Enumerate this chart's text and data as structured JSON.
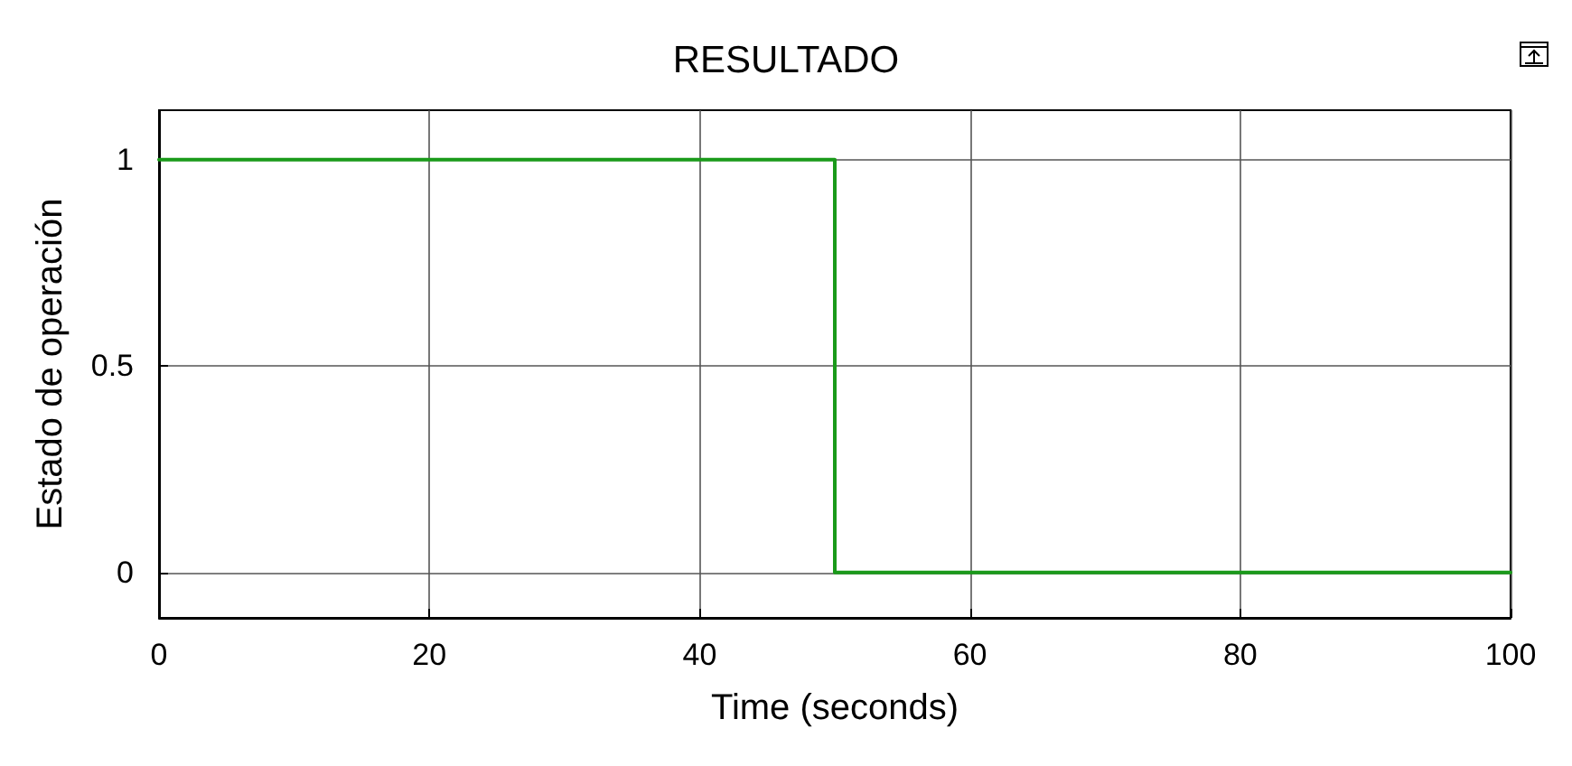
{
  "chart_data": {
    "type": "step",
    "title": "RESULTADO",
    "xlabel": "Time (seconds)",
    "ylabel": "Estado de operación",
    "x": [
      0,
      50,
      100
    ],
    "series": [
      {
        "color": "#1a9a1a",
        "values": [
          1,
          0,
          0
        ]
      }
    ],
    "xlim": [
      0,
      100
    ],
    "xticks": [
      0,
      20,
      40,
      60,
      80,
      100
    ],
    "ylim": [
      -0.11,
      1.12
    ],
    "yticks": [
      0,
      0.5,
      1
    ],
    "grid": true
  }
}
